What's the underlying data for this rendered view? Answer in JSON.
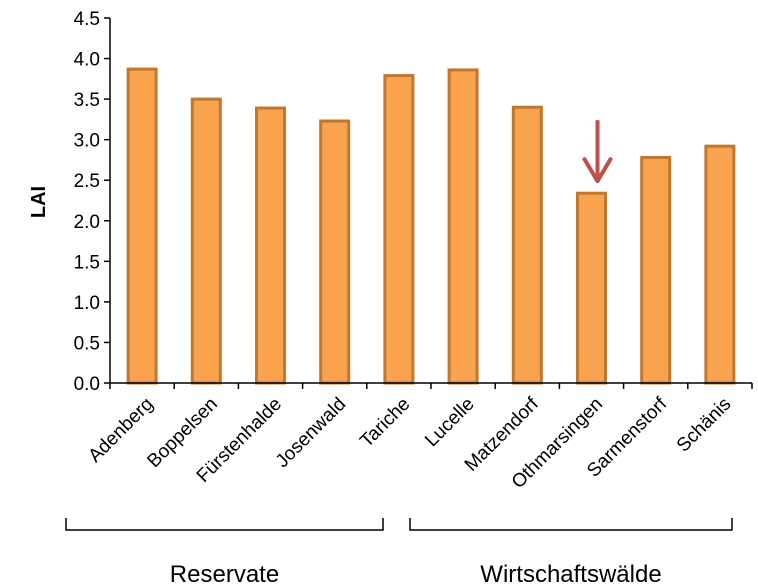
{
  "chart_data": {
    "type": "bar",
    "ylabel": "LAI",
    "ylim": [
      0,
      4.5
    ],
    "yticks": [
      "0.0",
      "0.5",
      "1.0",
      "1.5",
      "2.0",
      "2.5",
      "3.0",
      "3.5",
      "4.0",
      "4.5"
    ],
    "categories": [
      "Adenberg",
      "Boppelsen",
      "Fürstenhalde",
      "Josenwald",
      "Tariche",
      "Lucelle",
      "Matzendorf",
      "Othmarsingen",
      "Sarmenstorf",
      "Schänis"
    ],
    "values": [
      3.87,
      3.5,
      3.39,
      3.23,
      3.79,
      3.86,
      3.4,
      2.34,
      2.78,
      2.92
    ],
    "groups": [
      {
        "label": "Reservate",
        "categories": [
          "Adenberg",
          "Boppelsen",
          "Fürstenhalde",
          "Josenwald",
          "Tariche"
        ]
      },
      {
        "label": "Wirtschaftswälde",
        "categories": [
          "Lucelle",
          "Matzendorf",
          "Othmarsingen",
          "Sarmenstorf",
          "Schänis"
        ]
      }
    ],
    "highlight_category": "Othmarsingen",
    "colors": {
      "bar_fill": "#f9a34f",
      "bar_stroke": "#c0772e",
      "arrow": "#c0504d",
      "axis": "#000000"
    }
  }
}
